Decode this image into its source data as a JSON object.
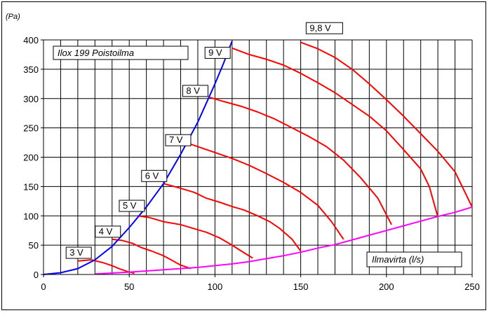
{
  "chart_data": {
    "type": "line",
    "y_unit_label": "(Pa)",
    "title_box": "Ilox 199 Poistoilma",
    "xlabel_box": "Ilmavirta (l/s)",
    "xlim": [
      0,
      250
    ],
    "ylim": [
      0,
      400
    ],
    "x_ticks": [
      0,
      50,
      100,
      150,
      200,
      250
    ],
    "y_ticks": [
      0,
      50,
      100,
      150,
      200,
      250,
      300,
      350,
      400
    ],
    "x_grid_step": 10,
    "grid": true,
    "colors": {
      "fan": "#ff0000",
      "limit": "#0000ff",
      "system": "#ff00ff"
    },
    "series": [
      {
        "name": "3 V",
        "color": "#ff0000",
        "x": [
          20,
          28,
          35,
          40,
          44,
          49,
          53
        ],
        "y": [
          23,
          25,
          20,
          15,
          10,
          5,
          2
        ]
      },
      {
        "name": "4 V",
        "color": "#ff0000",
        "x": [
          40,
          46,
          52,
          57,
          63,
          70,
          75,
          80,
          86
        ],
        "y": [
          60,
          58,
          53,
          46,
          40,
          32,
          24,
          16,
          10
        ]
      },
      {
        "name": "5 V",
        "color": "#ff0000",
        "x": [
          55,
          62,
          70,
          80,
          88,
          95,
          103,
          110,
          117,
          122
        ],
        "y": [
          100,
          97,
          90,
          85,
          78,
          72,
          62,
          50,
          37,
          28
        ]
      },
      {
        "name": "6 V",
        "color": "#ff0000",
        "x": [
          70,
          80,
          88,
          95,
          103,
          110,
          117,
          125,
          132,
          138,
          145,
          150
        ],
        "y": [
          155,
          147,
          140,
          130,
          123,
          116,
          110,
          100,
          90,
          78,
          60,
          40
        ]
      },
      {
        "name": "7 V",
        "color": "#ff0000",
        "x": [
          82,
          90,
          100,
          110,
          120,
          130,
          140,
          150,
          160,
          168,
          175
        ],
        "y": [
          226,
          218,
          208,
          198,
          186,
          172,
          157,
          140,
          118,
          90,
          60
        ]
      },
      {
        "name": "8 V",
        "color": "#ff0000",
        "x": [
          97,
          105,
          115,
          125,
          135,
          145,
          155,
          165,
          175,
          185,
          195,
          203
        ],
        "y": [
          302,
          295,
          287,
          277,
          265,
          250,
          235,
          218,
          195,
          165,
          130,
          85
        ]
      },
      {
        "name": "9 V",
        "color": "#ff0000",
        "x": [
          110,
          120,
          130,
          140,
          150,
          160,
          170,
          180,
          190,
          200,
          210,
          220,
          225,
          230
        ],
        "y": [
          386,
          375,
          367,
          357,
          343,
          327,
          310,
          290,
          270,
          245,
          213,
          180,
          150,
          98
        ]
      },
      {
        "name": "9,8 V",
        "color": "#ff0000",
        "x": [
          150,
          160,
          170,
          180,
          190,
          200,
          210,
          220,
          230,
          240,
          250
        ],
        "y": [
          396,
          385,
          370,
          350,
          325,
          298,
          270,
          240,
          210,
          175,
          115
        ]
      },
      {
        "name": "",
        "color": "#0000ff",
        "x": [
          0,
          10,
          20,
          30,
          40,
          50,
          60,
          70,
          80,
          90,
          100,
          105,
          110
        ],
        "y": [
          0,
          3,
          10,
          25,
          48,
          80,
          115,
          155,
          205,
          260,
          325,
          360,
          398
        ]
      },
      {
        "name": "",
        "color": "#ff00ff",
        "x": [
          30,
          50,
          60,
          70,
          80,
          90,
          100,
          110,
          120,
          130,
          140,
          150,
          160,
          170,
          180,
          190,
          200,
          210,
          220,
          230,
          240,
          250
        ],
        "y": [
          1,
          4,
          6,
          8,
          10,
          12,
          15,
          18,
          22,
          27,
          32,
          38,
          45,
          51,
          59,
          67,
          75,
          83,
          91,
          99,
          106,
          115
        ]
      }
    ],
    "curve_labels": [
      {
        "text": "3 V",
        "x": 14,
        "y": 37
      },
      {
        "text": "4 V",
        "x": 31,
        "y": 73
      },
      {
        "text": "5 V",
        "x": 45,
        "y": 117
      },
      {
        "text": "6 V",
        "x": 58,
        "y": 168
      },
      {
        "text": "7 V",
        "x": 72,
        "y": 229
      },
      {
        "text": "8 V",
        "x": 82,
        "y": 313
      },
      {
        "text": "9 V",
        "x": 95,
        "y": 378
      },
      {
        "text": "9,8 V",
        "x": 154,
        "y": 420
      }
    ]
  }
}
